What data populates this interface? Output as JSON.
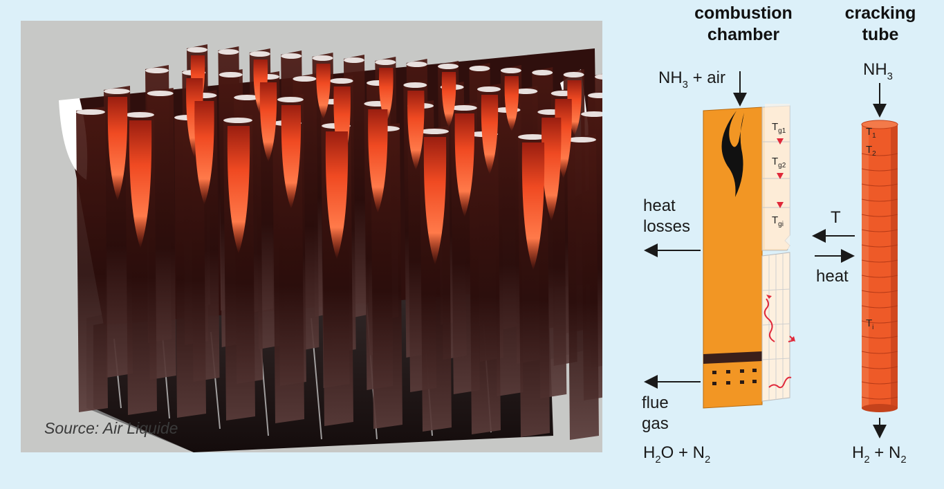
{
  "render": {
    "caption": "Source: Air Liquide",
    "colors": {
      "flame": "#f04a22",
      "flame_core": "#ff8a5a",
      "dark": "#2a0f0d",
      "floor": "#9e9e9e",
      "background": "#c7c8c6"
    }
  },
  "schematic": {
    "combustion_chamber": {
      "line1": "combustion",
      "line2": "chamber"
    },
    "cracking_tube": {
      "line1": "cracking",
      "line2": "tube"
    },
    "inlet_chamber": {
      "main": "NH",
      "sub": "3",
      "rest": " + air"
    },
    "inlet_tube": {
      "main": "NH",
      "sub": "3"
    },
    "heat_losses": {
      "line1": "heat",
      "line2": "losses"
    },
    "flue_gas": {
      "line1": "flue",
      "line2": "gas"
    },
    "flue_products": {
      "a": "H",
      "a_sub": "2",
      "b": "O + N",
      "b_sub": "2"
    },
    "tube_products": {
      "a": "H",
      "a_sub": "2",
      "b": " + N",
      "b_sub": "2"
    },
    "t_arrow": "T",
    "heat_arrow": "heat",
    "gas_temps": [
      {
        "main": "T",
        "sub": "g1"
      },
      {
        "main": "T",
        "sub": "g2"
      },
      {
        "main": "T",
        "sub": "gi"
      }
    ],
    "tube_temps": [
      {
        "main": "T",
        "sub": "1"
      },
      {
        "main": "T",
        "sub": "2"
      },
      {
        "main": "T",
        "sub": "i"
      }
    ],
    "colors": {
      "chamber": "#f29624",
      "tube": "#ee5a28",
      "tube_dark": "#c4421b",
      "band": "#3a1f1a",
      "arrow": "#1a1a1a",
      "marker": "#e0283a"
    }
  }
}
